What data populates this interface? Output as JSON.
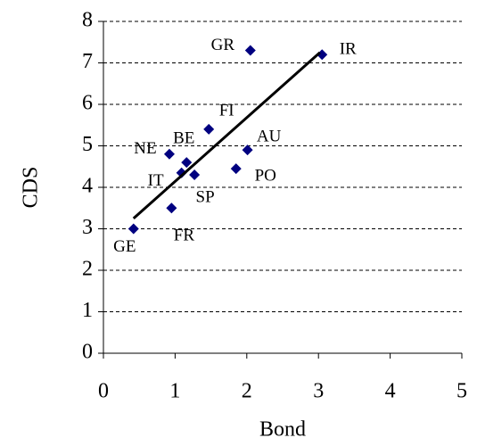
{
  "chart_data": {
    "type": "scatter",
    "x_label": "Bond",
    "y_label": "CDS",
    "labels": [
      "GR",
      "IR",
      "FI",
      "AU",
      "NE",
      "BE",
      "IT",
      "SP",
      "PO",
      "FR",
      "GE"
    ],
    "x": [
      2.05,
      3.05,
      1.47,
      2.01,
      0.92,
      1.16,
      1.09,
      1.27,
      1.85,
      0.95,
      0.42
    ],
    "values": [
      7.3,
      7.2,
      5.4,
      4.9,
      4.8,
      4.6,
      4.35,
      4.3,
      4.45,
      3.5,
      3.0
    ],
    "color": "#000080",
    "trendline": {
      "x": [
        0.42,
        3.02
      ],
      "values": [
        3.25,
        7.25
      ],
      "color": "#000000"
    },
    "xlim": [
      0,
      5
    ],
    "ylim": [
      0,
      8
    ],
    "xticks": [
      0,
      1,
      2,
      3,
      4,
      5
    ],
    "yticks": [
      0,
      1,
      2,
      3,
      4,
      5,
      6,
      7,
      8
    ],
    "grid": true
  }
}
